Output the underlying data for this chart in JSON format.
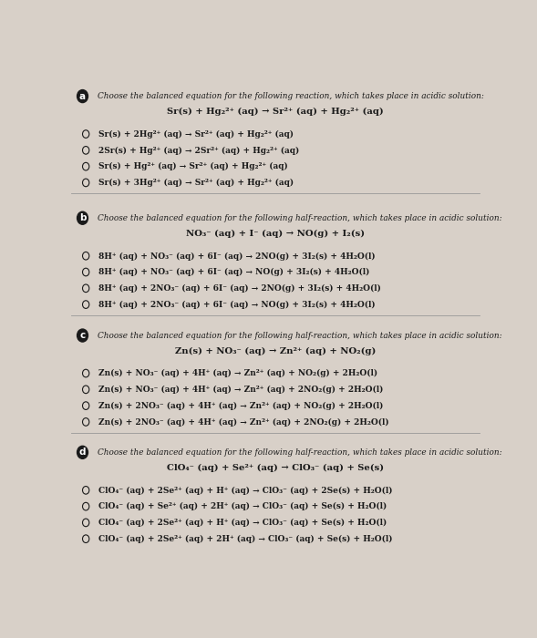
{
  "background_color": "#d8d0c8",
  "text_color": "#1a1a1a",
  "sections": [
    {
      "label": "a",
      "header": "Choose the balanced equation for the following reaction, which takes place in acidic solution:",
      "given_eq": "Sr(s) + Hg₂²⁺ (aq) → Sr²⁺ (aq) + Hg₂²⁺ (aq)",
      "options": [
        "Sr(s) + 2Hg²⁺ (aq) → Sr²⁺ (aq) + Hg₂²⁺ (aq)",
        "2Sr(s) + Hg²⁺ (aq) → 2Sr²⁺ (aq) + Hg₂²⁺ (aq)",
        "Sr(s) + Hg²⁺ (aq) → Sr²⁺ (aq) + Hg₂²⁺ (aq)",
        "Sr(s) + 3Hg²⁺ (aq) → Sr²⁺ (aq) + Hg₂²⁺ (aq)"
      ]
    },
    {
      "label": "b",
      "header": "Choose the balanced equation for the following half-reaction, which takes place in acidic solution:",
      "given_eq": "NO₃⁻ (aq) + I⁻ (aq) → NO(g) + I₂(s)",
      "options": [
        "8H⁺ (aq) + NO₃⁻ (aq) + 6I⁻ (aq) → 2NO(g) + 3I₂(s) + 4H₂O(l)",
        "8H⁺ (aq) + NO₃⁻ (aq) + 6I⁻ (aq) → NO(g) + 3I₂(s) + 4H₂O(l)",
        "8H⁺ (aq) + 2NO₃⁻ (aq) + 6I⁻ (aq) → 2NO(g) + 3I₂(s) + 4H₂O(l)",
        "8H⁺ (aq) + 2NO₃⁻ (aq) + 6I⁻ (aq) → NO(g) + 3I₂(s) + 4H₂O(l)"
      ]
    },
    {
      "label": "c",
      "header": "Choose the balanced equation for the following half-reaction, which takes place in acidic solution:",
      "given_eq": "Zn(s) + NO₃⁻ (aq) → Zn²⁺ (aq) + NO₂(g)",
      "options": [
        "Zn(s) + NO₃⁻ (aq) + 4H⁺ (aq) → Zn²⁺ (aq) + NO₂(g) + 2H₂O(l)",
        "Zn(s) + NO₃⁻ (aq) + 4H⁺ (aq) → Zn²⁺ (aq) + 2NO₂(g) + 2H₂O(l)",
        "Zn(s) + 2NO₃⁻ (aq) + 4H⁺ (aq) → Zn²⁺ (aq) + NO₂(g) + 2H₂O(l)",
        "Zn(s) + 2NO₃⁻ (aq) + 4H⁺ (aq) → Zn²⁺ (aq) + 2NO₂(g) + 2H₂O(l)"
      ]
    },
    {
      "label": "d",
      "header": "Choose the balanced equation for the following half-reaction, which takes place in acidic solution:",
      "given_eq": "ClO₄⁻ (aq) + Se²⁺ (aq) → ClO₃⁻ (aq) + Se(s)",
      "options": [
        "ClO₄⁻ (aq) + 2Se²⁺ (aq) + H⁺ (aq) → ClO₃⁻ (aq) + 2Se(s) + H₂O(l)",
        "ClO₄⁻ (aq) + Se²⁺ (aq) + 2H⁺ (aq) → ClO₃⁻ (aq) + Se(s) + H₂O(l)",
        "ClO₄⁻ (aq) + 2Se²⁺ (aq) + H⁺ (aq) → ClO₃⁻ (aq) + Se(s) + H₂O(l)",
        "ClO₄⁻ (aq) + 2Se²⁺ (aq) + 2H⁺ (aq) → ClO₃⁻ (aq) + Se(s) + H₂O(l)"
      ]
    }
  ]
}
